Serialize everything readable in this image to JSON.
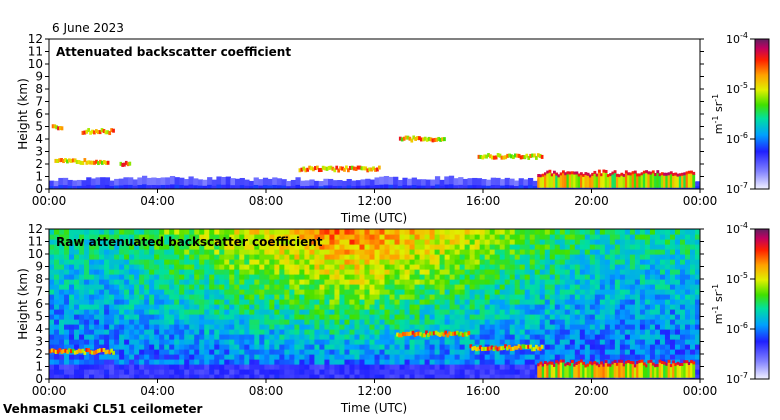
{
  "date": "6 June 2023",
  "instrument": "Vehmasmaki CL51 ceilometer",
  "chart_data": [
    {
      "type": "heatmap",
      "title": "Attenuated backscatter coefficient",
      "xlabel": "Time (UTC)",
      "ylabel": "Height (km)",
      "xticks": [
        "00:00",
        "04:00",
        "08:00",
        "12:00",
        "16:00",
        "20:00",
        "00:00"
      ],
      "xlim_hours": [
        0,
        24
      ],
      "ylim": [
        0,
        12
      ],
      "yticks": [
        0,
        1,
        2,
        3,
        4,
        5,
        6,
        7,
        8,
        9,
        10,
        11,
        12
      ],
      "colorbar": {
        "scale": "log",
        "ticks": [
          "10^-7",
          "10^-6",
          "10^-5",
          "10^-4"
        ],
        "tick_base": "10",
        "tick_exponents": [
          "-7",
          "-6",
          "-5",
          "-4"
        ],
        "unit_parts": [
          "m",
          "-1",
          " sr",
          "-1"
        ]
      },
      "features": [
        {
          "kind": "boundary_layer",
          "t_start_h": 0,
          "t_end_h": 24,
          "top_km": [
            0.8,
            0.9,
            0.9,
            0.8,
            0.7,
            0.9,
            0.9,
            0.8,
            0.6,
            0.6
          ]
        },
        {
          "kind": "cloud_layer",
          "t_start_h": 0.2,
          "t_end_h": 2.2,
          "height_km": 2.2
        },
        {
          "kind": "cloud_layer",
          "t_start_h": 2.6,
          "t_end_h": 3.0,
          "height_km": 2.0
        },
        {
          "kind": "cloud_layer",
          "t_start_h": 0.1,
          "t_end_h": 0.5,
          "height_km": 4.9
        },
        {
          "kind": "cloud_layer",
          "t_start_h": 1.2,
          "t_end_h": 2.4,
          "height_km": 4.6
        },
        {
          "kind": "cloud_layer",
          "t_start_h": 9.2,
          "t_end_h": 12.2,
          "height_km": 1.6
        },
        {
          "kind": "cloud_layer",
          "t_start_h": 12.9,
          "t_end_h": 14.6,
          "height_km": 4.0
        },
        {
          "kind": "cloud_layer",
          "t_start_h": 15.8,
          "t_end_h": 18.2,
          "height_km": 2.6
        },
        {
          "kind": "dense_cloud",
          "t_start_h": 18.0,
          "t_end_h": 23.8,
          "height_km": 1.2
        }
      ]
    },
    {
      "type": "heatmap",
      "title": "Raw attenuated backscatter coefficient",
      "xlabel": "Time (UTC)",
      "ylabel": "Height (km)",
      "xticks": [
        "00:00",
        "04:00",
        "08:00",
        "12:00",
        "16:00",
        "20:00",
        "00:00"
      ],
      "xlim_hours": [
        0,
        24
      ],
      "ylim": [
        0,
        12
      ],
      "yticks": [
        0,
        1,
        2,
        3,
        4,
        5,
        6,
        7,
        8,
        9,
        10,
        11,
        12
      ],
      "colorbar": {
        "scale": "log",
        "ticks": [
          "10^-7",
          "10^-6",
          "10^-5",
          "10^-4"
        ],
        "tick_base": "10",
        "tick_exponents": [
          "-7",
          "-6",
          "-5",
          "-4"
        ],
        "unit_parts": [
          "m",
          "-1",
          " sr",
          "-1"
        ]
      },
      "features": [
        {
          "kind": "noise_background",
          "t_start_h": 0,
          "t_end_h": 24,
          "peak_hour": 11.0,
          "peak_top_km": 12
        },
        {
          "kind": "cloud_layer",
          "t_start_h": 0.0,
          "t_end_h": 2.4,
          "height_km": 2.2
        },
        {
          "kind": "cloud_layer",
          "t_start_h": 12.8,
          "t_end_h": 15.5,
          "height_km": 3.6
        },
        {
          "kind": "cloud_layer",
          "t_start_h": 15.5,
          "t_end_h": 18.2,
          "height_km": 2.5
        },
        {
          "kind": "dense_cloud",
          "t_start_h": 18.0,
          "t_end_h": 23.8,
          "height_km": 1.2
        }
      ]
    }
  ]
}
